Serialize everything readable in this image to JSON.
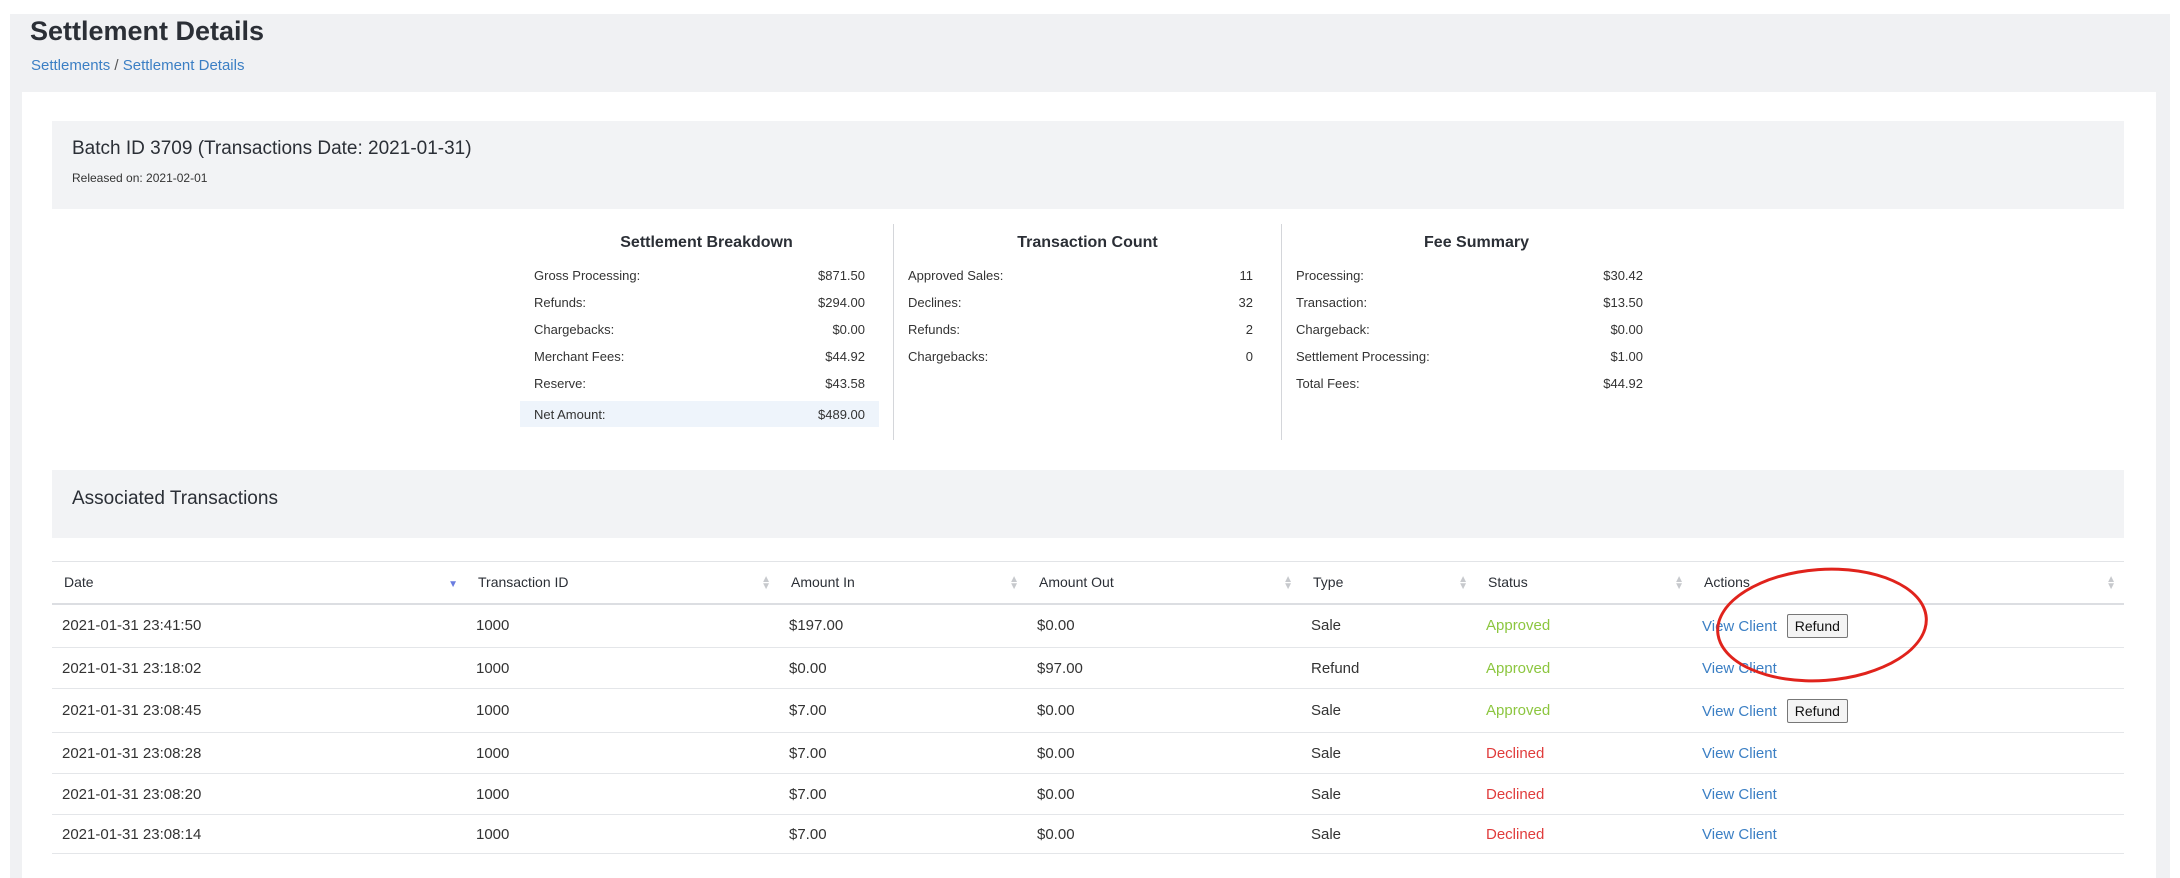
{
  "page": {
    "title": "Settlement Details",
    "breadcrumb": {
      "root": "Settlements",
      "separator": " / ",
      "current": "Settlement Details"
    }
  },
  "batch": {
    "title": "Batch ID 3709 (Transactions Date: 2021-01-31)",
    "released": "Released on: 2021-02-01"
  },
  "settlement_breakdown": {
    "heading": "Settlement Breakdown",
    "rows": [
      {
        "label": "Gross Processing:",
        "value": "$871.50"
      },
      {
        "label": "Refunds:",
        "value": "$294.00"
      },
      {
        "label": "Chargebacks:",
        "value": "$0.00"
      },
      {
        "label": "Merchant Fees:",
        "value": "$44.92"
      },
      {
        "label": "Reserve:",
        "value": "$43.58"
      },
      {
        "label": "Net Amount:",
        "value": "$489.00"
      }
    ]
  },
  "transaction_count": {
    "heading": "Transaction Count",
    "rows": [
      {
        "label": "Approved Sales:",
        "value": "11"
      },
      {
        "label": "Declines:",
        "value": "32"
      },
      {
        "label": "Refunds:",
        "value": "2"
      },
      {
        "label": "Chargebacks:",
        "value": "0"
      }
    ]
  },
  "fee_summary": {
    "heading": "Fee Summary",
    "rows": [
      {
        "label": "Processing:",
        "value": "$30.42"
      },
      {
        "label": "Transaction:",
        "value": "$13.50"
      },
      {
        "label": "Chargeback:",
        "value": "$0.00"
      },
      {
        "label": "Settlement Processing:",
        "value": "$1.00"
      },
      {
        "label": "Total Fees:",
        "value": "$44.92"
      }
    ]
  },
  "associated": {
    "title": "Associated Transactions",
    "columns": [
      "Date",
      "Transaction ID",
      "Amount In",
      "Amount Out",
      "Type",
      "Status",
      "Actions"
    ],
    "view_client_label": "View Client",
    "refund_label": "Refund",
    "rows": [
      {
        "date": "2021-01-31 23:41:50",
        "id": "1000",
        "amount_in": "$197.00",
        "amount_out": "$0.00",
        "type": "Sale",
        "status": "Approved"
      },
      {
        "date": "2021-01-31 23:18:02",
        "id": "1000",
        "amount_in": "$0.00",
        "amount_out": "$97.00",
        "type": "Refund",
        "status": "Approved"
      },
      {
        "date": "2021-01-31 23:08:45",
        "id": "1000",
        "amount_in": "$7.00",
        "amount_out": "$0.00",
        "type": "Sale",
        "status": "Approved"
      },
      {
        "date": "2021-01-31 23:08:28",
        "id": "1000",
        "amount_in": "$7.00",
        "amount_out": "$0.00",
        "type": "Sale",
        "status": "Declined"
      },
      {
        "date": "2021-01-31 23:08:20",
        "id": "1000",
        "amount_in": "$7.00",
        "amount_out": "$0.00",
        "type": "Sale",
        "status": "Declined"
      },
      {
        "date": "2021-01-31 23:08:14",
        "id": "1000",
        "amount_in": "$7.00",
        "amount_out": "$0.00",
        "type": "Sale",
        "status": "Declined"
      }
    ]
  },
  "colors": {
    "link": "#3b7fc4",
    "approved": "#8cc63f",
    "declined": "#e03c3c",
    "annotation": "#e0231c",
    "sort_active": "#6a7de0"
  },
  "icons": {
    "sort": "sort-icon",
    "sort_active": "sort-descending-icon"
  }
}
